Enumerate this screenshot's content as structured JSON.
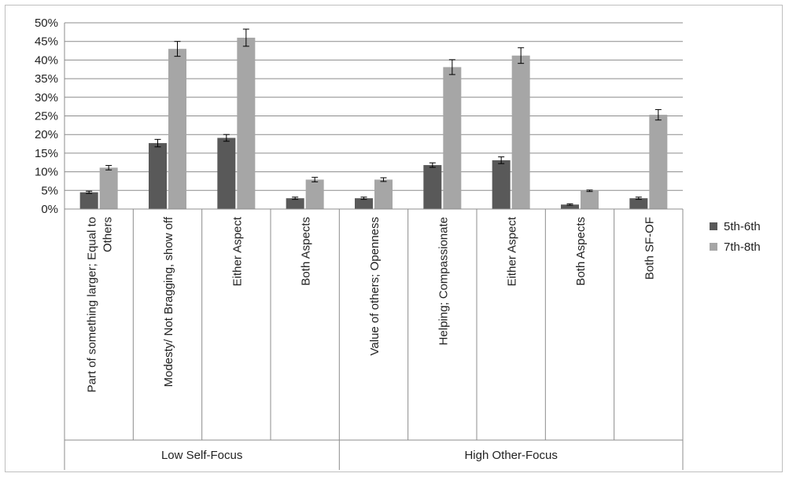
{
  "chart_data": {
    "type": "bar",
    "title": "",
    "xlabel": "",
    "ylabel": "",
    "ylim": [
      0,
      0.5
    ],
    "yticks": [
      "0%",
      "5%",
      "10%",
      "15%",
      "20%",
      "25%",
      "30%",
      "35%",
      "40%",
      "45%",
      "50%"
    ],
    "grid": true,
    "legend_position": "right",
    "groups": [
      {
        "label": "Low Self-Focus",
        "span": [
          0,
          3
        ]
      },
      {
        "label": "High Other-Focus",
        "span": [
          4,
          8
        ]
      }
    ],
    "categories": [
      [
        "Part of something larger; Equal to",
        "Others"
      ],
      [
        "Modesty/ Not Bragging, show off"
      ],
      [
        "Either Aspect"
      ],
      [
        "Both Aspects"
      ],
      [
        "Value of others; Openness"
      ],
      [
        "Helping; Compassionate"
      ],
      [
        "Either Aspect"
      ],
      [
        "Both Aspects"
      ],
      [
        "Both SF-OF"
      ]
    ],
    "series": [
      {
        "name": "5th-6th",
        "color": "#595959",
        "values": [
          0.045,
          0.177,
          0.191,
          0.029,
          0.029,
          0.118,
          0.131,
          0.012,
          0.029
        ],
        "errors": [
          0.003,
          0.01,
          0.009,
          0.003,
          0.003,
          0.006,
          0.009,
          0.002,
          0.003
        ]
      },
      {
        "name": "7th-8th",
        "color": "#a6a6a6",
        "values": [
          0.111,
          0.43,
          0.46,
          0.079,
          0.079,
          0.381,
          0.412,
          0.049,
          0.253
        ],
        "errors": [
          0.006,
          0.02,
          0.023,
          0.006,
          0.005,
          0.02,
          0.021,
          0.002,
          0.014
        ]
      }
    ]
  }
}
